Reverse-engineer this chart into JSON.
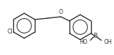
{
  "bg_color": "#ffffff",
  "bond_color": "#2a2a2a",
  "atom_color": "#2a2a2a",
  "bond_lw": 1.0,
  "cl_label": "Cl",
  "o_label": "O",
  "b_label": "B",
  "ho_label1": "HO",
  "ho_label2": "OH"
}
